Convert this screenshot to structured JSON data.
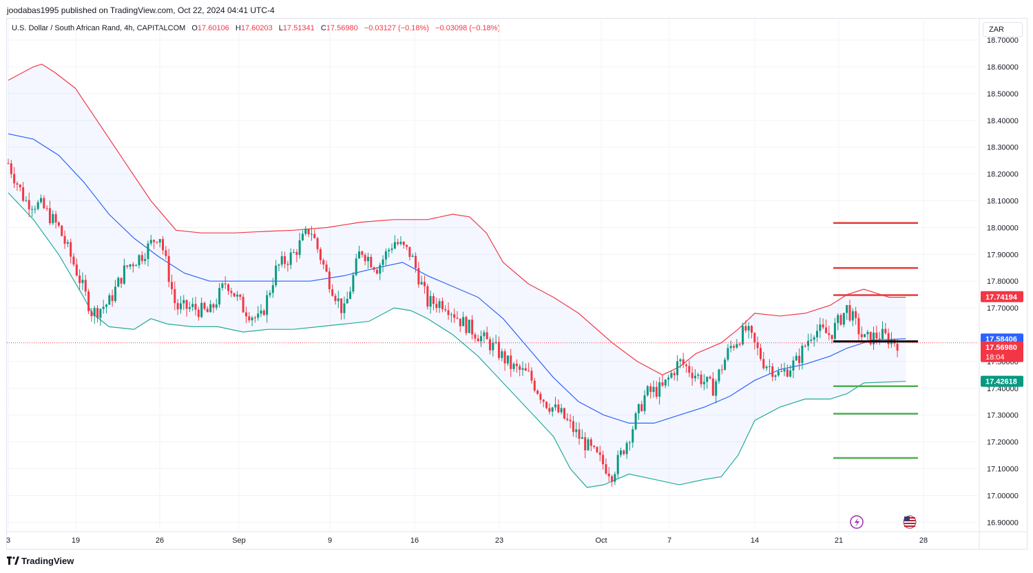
{
  "publisher_line": "joodabas1995 published on TradingView.com, Oct 22, 2024 04:41 UTC-4",
  "legend": {
    "symbol": "U.S. Dollar / South African Rand, 4h, CAPITALCOM",
    "open_key": "O",
    "open": "17.60106",
    "high_key": "H",
    "high": "17.60203",
    "low_key": "L",
    "low": "17.51341",
    "close_key": "C",
    "close": "17.56980",
    "change1": "−0.03127 (−0.18%)",
    "change2": "−0.03098 (−0.18%)"
  },
  "currency": "ZAR",
  "footer": "TradingView",
  "colors": {
    "up": "#26a69a",
    "down": "#ef5350",
    "band_upper": "#f23645",
    "band_lower": "#22ab94",
    "band_mid": "#2962ff",
    "support": "#4caf50",
    "resistance": "#e53935"
  },
  "chart_data": {
    "type": "candlestick",
    "price_axis": {
      "ticks": [
        "18.70000",
        "18.60000",
        "18.50000",
        "18.40000",
        "18.30000",
        "18.20000",
        "18.10000",
        "18.00000",
        "17.90000",
        "17.80000",
        "17.70000",
        "17.50000",
        "17.40000",
        "17.30000",
        "17.20000",
        "17.10000",
        "17.00000",
        "16.90000"
      ],
      "range": [
        16.87,
        18.78
      ]
    },
    "time_axis": {
      "ticks": [
        "3",
        "19",
        "26",
        "Sep",
        "9",
        "16",
        "23",
        "Oct",
        "7",
        "14",
        "21",
        "28"
      ]
    },
    "price_labels": [
      {
        "name": "bb-upper",
        "value": 17.74194,
        "text": "17.74194",
        "color": "#f23645"
      },
      {
        "name": "bb-basis",
        "value": 17.58406,
        "text": "17.58406",
        "color": "#2962ff"
      },
      {
        "name": "last-price",
        "value": 17.5698,
        "text": "17.56980",
        "sub": "18:04",
        "color": "#f23645"
      },
      {
        "name": "bb-lower",
        "value": 17.42618,
        "text": "17.42618",
        "color": "#089981"
      }
    ],
    "horizontal_levels": {
      "resistance": [
        18.017,
        17.849,
        17.748
      ],
      "pivot": [
        17.575
      ],
      "support": [
        17.408,
        17.305,
        17.14
      ]
    },
    "bollinger": {
      "upper": [
        [
          0,
          18.55
        ],
        [
          0.03,
          18.6
        ],
        [
          0.04,
          18.61
        ],
        [
          0.055,
          18.58
        ],
        [
          0.08,
          18.52
        ],
        [
          0.11,
          18.38
        ],
        [
          0.14,
          18.24
        ],
        [
          0.17,
          18.1
        ],
        [
          0.2,
          17.99
        ],
        [
          0.23,
          17.98
        ],
        [
          0.27,
          17.98
        ],
        [
          0.3,
          17.985
        ],
        [
          0.34,
          17.99
        ],
        [
          0.38,
          18.0
        ],
        [
          0.42,
          18.02
        ],
        [
          0.46,
          18.03
        ],
        [
          0.5,
          18.03
        ],
        [
          0.53,
          18.05
        ],
        [
          0.55,
          18.04
        ],
        [
          0.57,
          17.98
        ],
        [
          0.59,
          17.87
        ],
        [
          0.62,
          17.79
        ],
        [
          0.65,
          17.74
        ],
        [
          0.68,
          17.68
        ],
        [
          0.72,
          17.57
        ],
        [
          0.75,
          17.5
        ],
        [
          0.78,
          17.45
        ],
        [
          0.8,
          17.48
        ],
        [
          0.82,
          17.53
        ],
        [
          0.85,
          17.57
        ],
        [
          0.87,
          17.62
        ],
        [
          0.89,
          17.68
        ],
        [
          0.92,
          17.67
        ],
        [
          0.95,
          17.68
        ],
        [
          0.98,
          17.71
        ],
        [
          1.0,
          17.75
        ],
        [
          1.02,
          17.77
        ],
        [
          1.05,
          17.74
        ],
        [
          1.07,
          17.74
        ]
      ],
      "basis": [
        [
          0,
          18.35
        ],
        [
          0.03,
          18.33
        ],
        [
          0.06,
          18.27
        ],
        [
          0.09,
          18.17
        ],
        [
          0.12,
          18.05
        ],
        [
          0.15,
          17.96
        ],
        [
          0.18,
          17.89
        ],
        [
          0.21,
          17.83
        ],
        [
          0.24,
          17.8
        ],
        [
          0.27,
          17.8
        ],
        [
          0.3,
          17.8
        ],
        [
          0.33,
          17.8
        ],
        [
          0.36,
          17.8
        ],
        [
          0.4,
          17.82
        ],
        [
          0.44,
          17.85
        ],
        [
          0.47,
          17.87
        ],
        [
          0.5,
          17.82
        ],
        [
          0.53,
          17.78
        ],
        [
          0.56,
          17.74
        ],
        [
          0.59,
          17.66
        ],
        [
          0.62,
          17.55
        ],
        [
          0.65,
          17.44
        ],
        [
          0.68,
          17.35
        ],
        [
          0.71,
          17.3
        ],
        [
          0.74,
          17.27
        ],
        [
          0.77,
          17.27
        ],
        [
          0.8,
          17.3
        ],
        [
          0.83,
          17.33
        ],
        [
          0.86,
          17.37
        ],
        [
          0.89,
          17.43
        ],
        [
          0.92,
          17.47
        ],
        [
          0.95,
          17.49
        ],
        [
          0.98,
          17.52
        ],
        [
          1.0,
          17.55
        ],
        [
          1.03,
          17.58
        ],
        [
          1.07,
          17.585
        ]
      ],
      "lower": [
        [
          0,
          18.13
        ],
        [
          0.03,
          18.03
        ],
        [
          0.06,
          17.9
        ],
        [
          0.09,
          17.74
        ],
        [
          0.1,
          17.68
        ],
        [
          0.12,
          17.63
        ],
        [
          0.15,
          17.62
        ],
        [
          0.17,
          17.66
        ],
        [
          0.19,
          17.64
        ],
        [
          0.22,
          17.63
        ],
        [
          0.25,
          17.63
        ],
        [
          0.28,
          17.61
        ],
        [
          0.31,
          17.62
        ],
        [
          0.34,
          17.62
        ],
        [
          0.37,
          17.63
        ],
        [
          0.4,
          17.64
        ],
        [
          0.43,
          17.65
        ],
        [
          0.46,
          17.7
        ],
        [
          0.48,
          17.69
        ],
        [
          0.5,
          17.66
        ],
        [
          0.53,
          17.6
        ],
        [
          0.56,
          17.52
        ],
        [
          0.59,
          17.42
        ],
        [
          0.62,
          17.32
        ],
        [
          0.65,
          17.22
        ],
        [
          0.67,
          17.1
        ],
        [
          0.69,
          17.03
        ],
        [
          0.71,
          17.04
        ],
        [
          0.74,
          17.08
        ],
        [
          0.77,
          17.06
        ],
        [
          0.8,
          17.04
        ],
        [
          0.83,
          17.06
        ],
        [
          0.85,
          17.07
        ],
        [
          0.87,
          17.15
        ],
        [
          0.89,
          17.28
        ],
        [
          0.92,
          17.33
        ],
        [
          0.95,
          17.36
        ],
        [
          0.98,
          17.36
        ],
        [
          1.0,
          17.38
        ],
        [
          1.02,
          17.42
        ],
        [
          1.07,
          17.426
        ]
      ]
    },
    "candles_path": [
      [
        0,
        18.24
      ],
      [
        0.02,
        18.1
      ],
      [
        0.04,
        18.08
      ],
      [
        0.06,
        18.0
      ],
      [
        0.08,
        17.85
      ],
      [
        0.1,
        17.68
      ],
      [
        0.12,
        17.72
      ],
      [
        0.14,
        17.85
      ],
      [
        0.16,
        17.9
      ],
      [
        0.18,
        17.98
      ],
      [
        0.2,
        17.7
      ],
      [
        0.22,
        17.7
      ],
      [
        0.24,
        17.68
      ],
      [
        0.26,
        17.8
      ],
      [
        0.28,
        17.7
      ],
      [
        0.3,
        17.65
      ],
      [
        0.32,
        17.85
      ],
      [
        0.34,
        17.9
      ],
      [
        0.36,
        18.0
      ],
      [
        0.38,
        17.82
      ],
      [
        0.4,
        17.68
      ],
      [
        0.42,
        17.92
      ],
      [
        0.44,
        17.85
      ],
      [
        0.46,
        17.95
      ],
      [
        0.48,
        17.9
      ],
      [
        0.5,
        17.72
      ],
      [
        0.52,
        17.72
      ],
      [
        0.54,
        17.65
      ],
      [
        0.56,
        17.6
      ],
      [
        0.58,
        17.55
      ],
      [
        0.6,
        17.48
      ],
      [
        0.62,
        17.45
      ],
      [
        0.64,
        17.35
      ],
      [
        0.66,
        17.3
      ],
      [
        0.68,
        17.22
      ],
      [
        0.7,
        17.15
      ],
      [
        0.72,
        17.08
      ],
      [
        0.74,
        17.22
      ],
      [
        0.76,
        17.38
      ],
      [
        0.78,
        17.4
      ],
      [
        0.8,
        17.5
      ],
      [
        0.82,
        17.45
      ],
      [
        0.84,
        17.4
      ],
      [
        0.86,
        17.55
      ],
      [
        0.88,
        17.62
      ],
      [
        0.9,
        17.5
      ],
      [
        0.92,
        17.45
      ],
      [
        0.94,
        17.5
      ],
      [
        0.96,
        17.62
      ],
      [
        0.98,
        17.6
      ],
      [
        1.0,
        17.7
      ],
      [
        1.02,
        17.58
      ],
      [
        1.04,
        17.6
      ],
      [
        1.06,
        17.57
      ]
    ]
  }
}
